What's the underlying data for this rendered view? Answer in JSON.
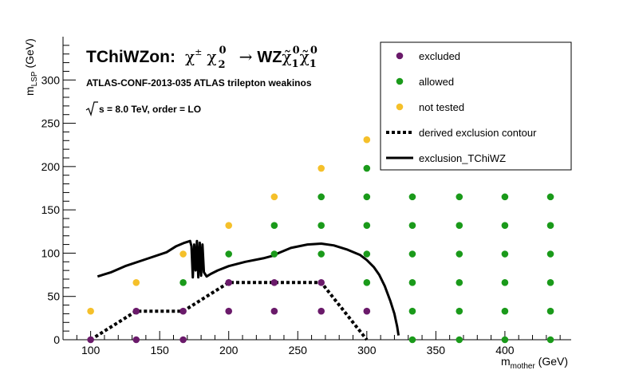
{
  "colors": {
    "excluded": "#6a1a6a",
    "allowed": "#1a9a1a",
    "not_tested": "#f5c02a",
    "line": "#000000"
  },
  "chart_data": {
    "type": "scatter",
    "title": "TChiWZon:",
    "xlabel": "m_mother (GeV)",
    "ylabel": "m_LSP (GeV)",
    "xlim": [
      80,
      448
    ],
    "ylim": [
      0,
      350
    ],
    "x_ticks": [
      100,
      150,
      200,
      250,
      300,
      350,
      400
    ],
    "y_ticks": [
      0,
      50,
      100,
      150,
      200,
      250,
      300
    ],
    "legend_position": "top-right",
    "annotations": {
      "line1": "ATLAS-CONF-2013-035  ATLAS trilepton weakinos",
      "line2": "s =  8.0 TeV, order =  LO"
    },
    "series": [
      {
        "name": "excluded",
        "marker": "circle",
        "points": [
          [
            100,
            0
          ],
          [
            133,
            0
          ],
          [
            167,
            0
          ],
          [
            133,
            33
          ],
          [
            167,
            33
          ],
          [
            200,
            33
          ],
          [
            233,
            33
          ],
          [
            267,
            33
          ],
          [
            300,
            33
          ],
          [
            200,
            66
          ],
          [
            233,
            66
          ],
          [
            267,
            66
          ]
        ]
      },
      {
        "name": "allowed",
        "marker": "circle",
        "points": [
          [
            333,
            0
          ],
          [
            367,
            0
          ],
          [
            400,
            0
          ],
          [
            433,
            0
          ],
          [
            333,
            33
          ],
          [
            367,
            33
          ],
          [
            400,
            33
          ],
          [
            433,
            33
          ],
          [
            167,
            66
          ],
          [
            300,
            66
          ],
          [
            333,
            66
          ],
          [
            367,
            66
          ],
          [
            400,
            66
          ],
          [
            433,
            66
          ],
          [
            200,
            99
          ],
          [
            233,
            99
          ],
          [
            267,
            99
          ],
          [
            300,
            99
          ],
          [
            333,
            99
          ],
          [
            367,
            99
          ],
          [
            400,
            99
          ],
          [
            433,
            99
          ],
          [
            233,
            132
          ],
          [
            267,
            132
          ],
          [
            300,
            132
          ],
          [
            333,
            132
          ],
          [
            367,
            132
          ],
          [
            400,
            132
          ],
          [
            433,
            132
          ],
          [
            267,
            165
          ],
          [
            300,
            165
          ],
          [
            333,
            165
          ],
          [
            367,
            165
          ],
          [
            400,
            165
          ],
          [
            433,
            165
          ],
          [
            300,
            198
          ]
        ]
      },
      {
        "name": "not tested",
        "marker": "circle",
        "points": [
          [
            100,
            33
          ],
          [
            133,
            66
          ],
          [
            167,
            99
          ],
          [
            200,
            132
          ],
          [
            233,
            165
          ],
          [
            267,
            198
          ],
          [
            300,
            231
          ]
        ]
      },
      {
        "name": "derived exclusion contour",
        "style": "dotted",
        "points": [
          [
            100,
            0
          ],
          [
            133,
            33
          ],
          [
            167,
            33
          ],
          [
            200,
            66
          ],
          [
            267,
            66
          ],
          [
            300,
            0
          ]
        ]
      },
      {
        "name": "exclusion_TChiWZ",
        "style": "solid",
        "points": [
          [
            105,
            73
          ],
          [
            115,
            78
          ],
          [
            125,
            85
          ],
          [
            140,
            93
          ],
          [
            155,
            101
          ],
          [
            162,
            108
          ],
          [
            168,
            112
          ],
          [
            172,
            114
          ],
          [
            173,
            108
          ],
          [
            174,
            72
          ],
          [
            175,
            110
          ],
          [
            176,
            80
          ],
          [
            177,
            114
          ],
          [
            178,
            72
          ],
          [
            179,
            112
          ],
          [
            180,
            74
          ],
          [
            181,
            110
          ],
          [
            182,
            78
          ],
          [
            184,
            73
          ],
          [
            187,
            76
          ],
          [
            192,
            80
          ],
          [
            200,
            85
          ],
          [
            212,
            90
          ],
          [
            225,
            94
          ],
          [
            232,
            97
          ],
          [
            236,
            100
          ],
          [
            245,
            106
          ],
          [
            257,
            110
          ],
          [
            267,
            111
          ],
          [
            276,
            109
          ],
          [
            286,
            104
          ],
          [
            295,
            98
          ],
          [
            300,
            92
          ],
          [
            305,
            84
          ],
          [
            309,
            75
          ],
          [
            313,
            62
          ],
          [
            317,
            45
          ],
          [
            320,
            30
          ],
          [
            322,
            15
          ],
          [
            323,
            5
          ]
        ]
      }
    ]
  }
}
